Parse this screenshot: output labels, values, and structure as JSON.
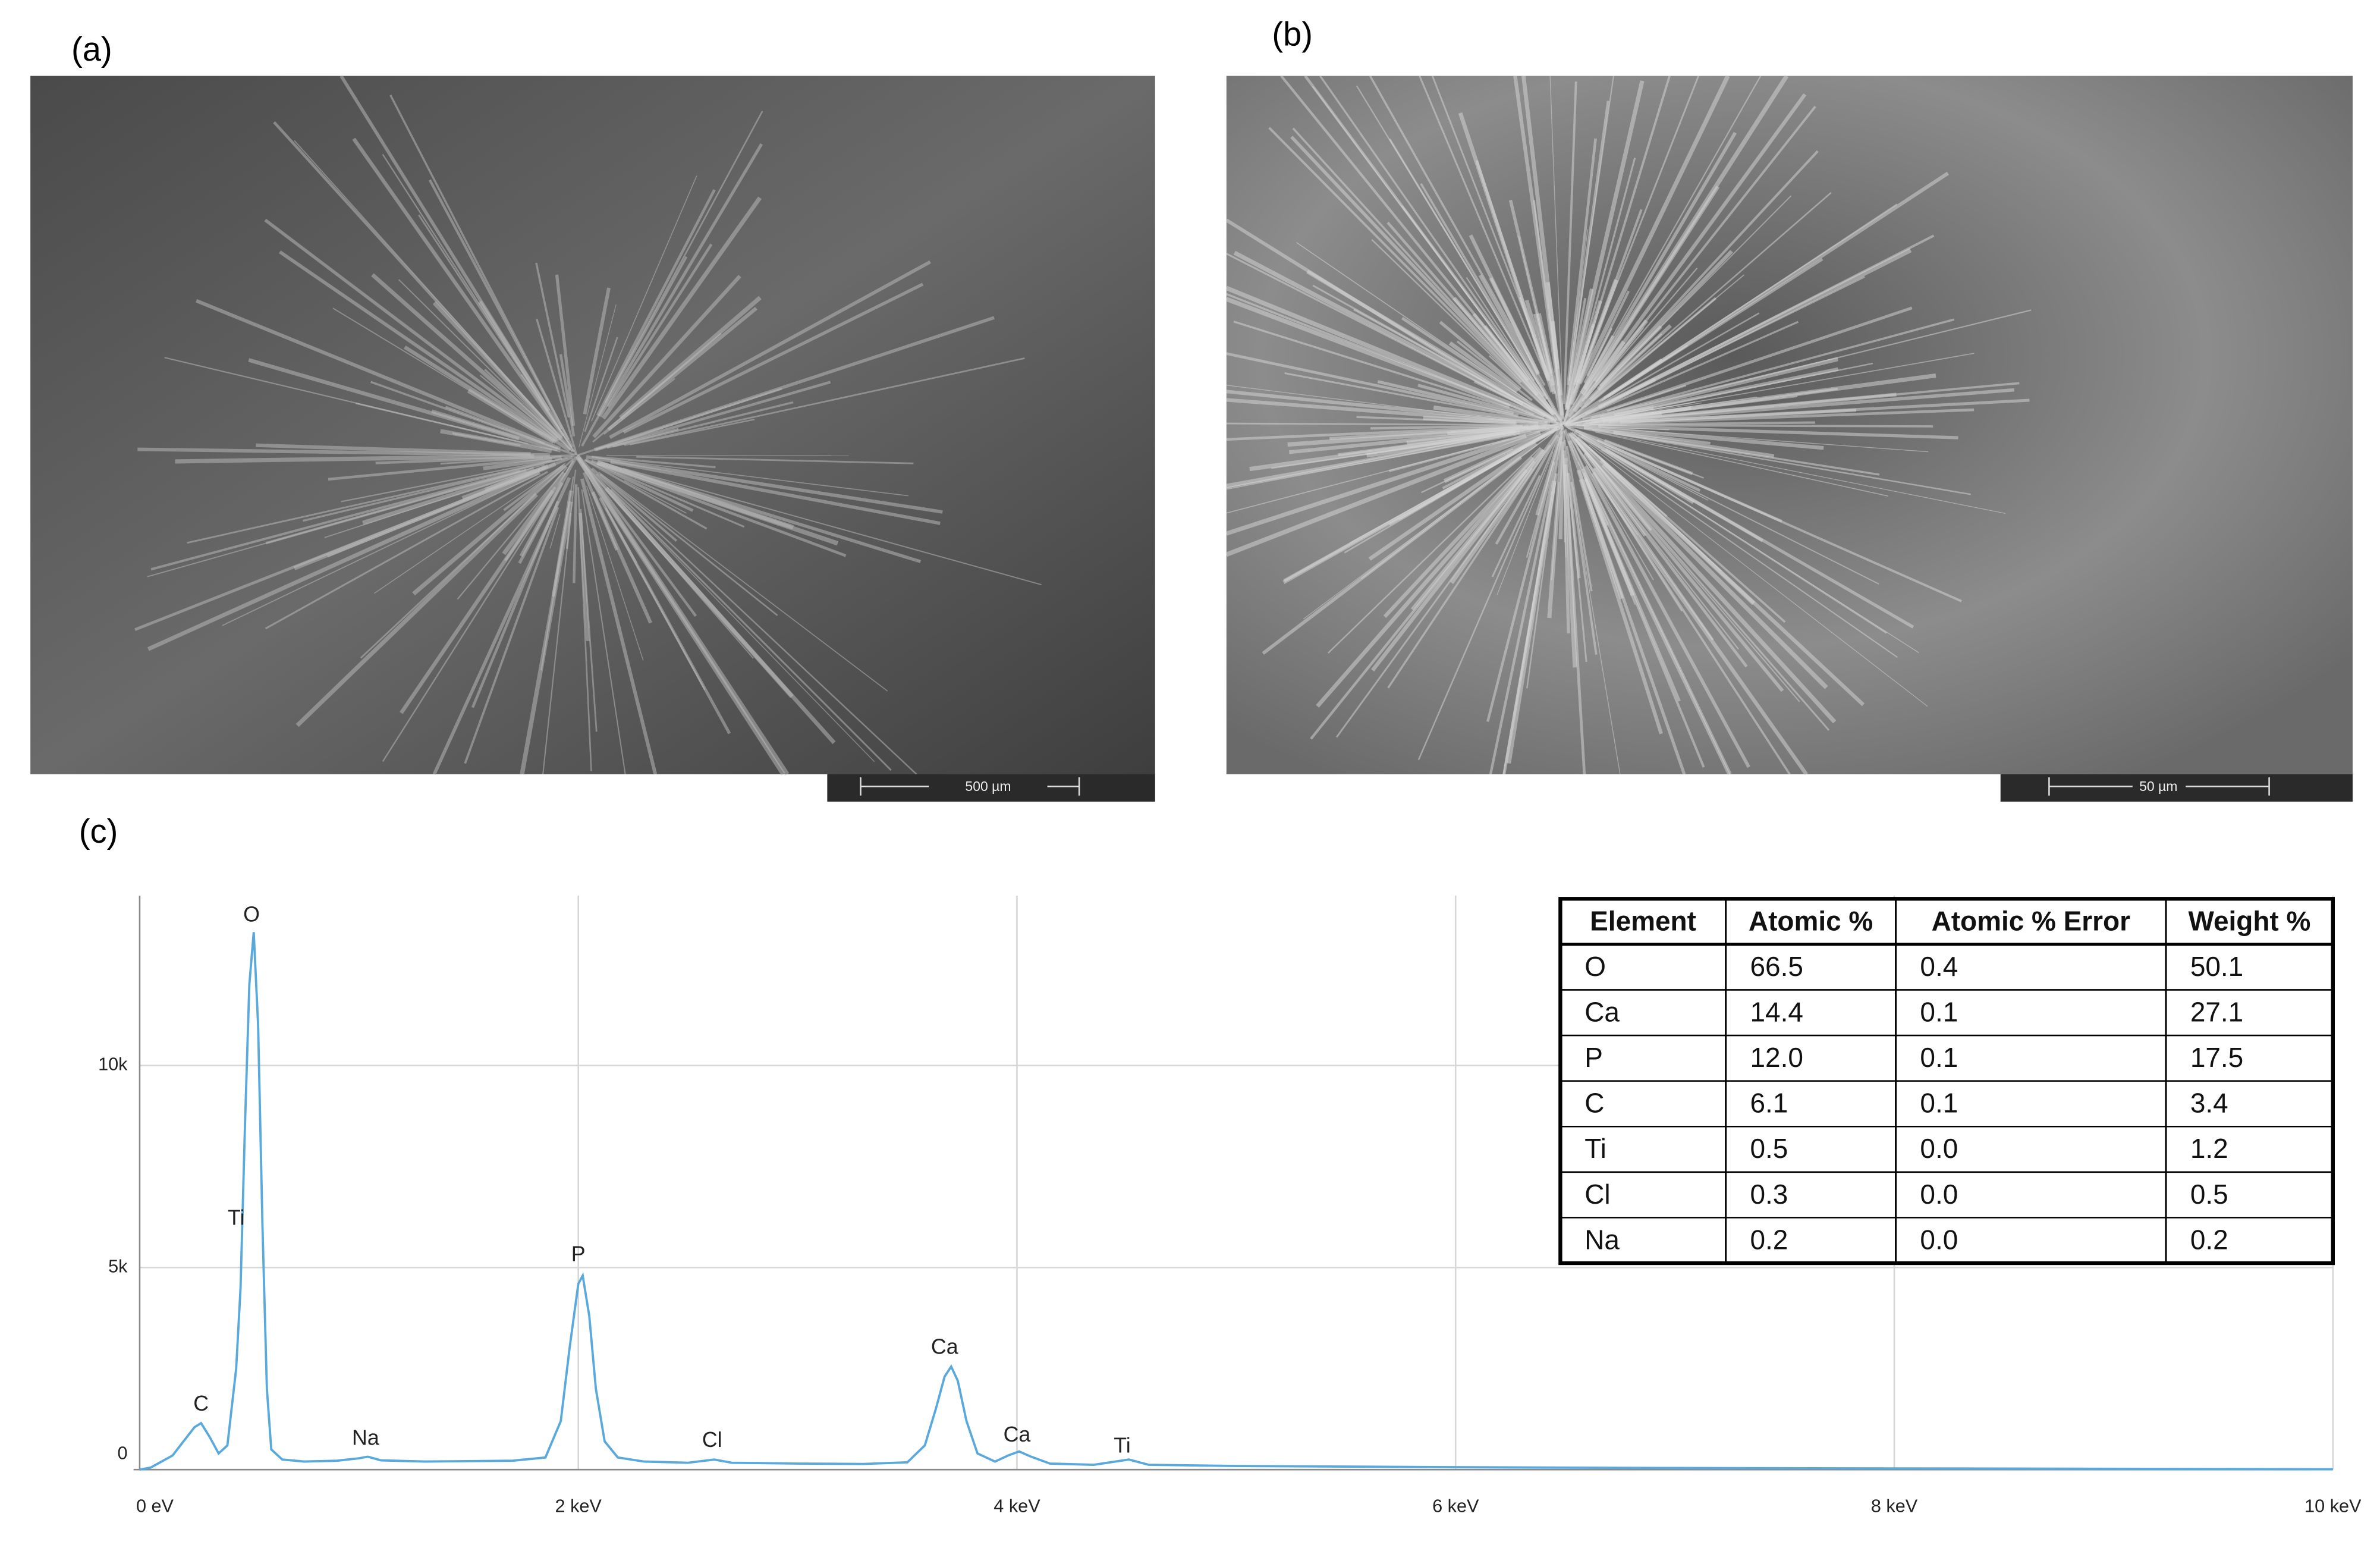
{
  "images": [
    {
      "label": "(a)",
      "scale_bar": "500 µm"
    },
    {
      "label": "(b)",
      "scale_bar": "50 µm"
    }
  ],
  "spectrum_label": "(c)",
  "chart_data": {
    "type": "line",
    "color": "#5aa9dc",
    "grid": true,
    "x": [
      0.0,
      0.05,
      0.1,
      0.15,
      0.2,
      0.25,
      0.28,
      0.32,
      0.36,
      0.4,
      0.44,
      0.46,
      0.48,
      0.5,
      0.52,
      0.54,
      0.56,
      0.58,
      0.6,
      0.65,
      0.75,
      0.9,
      1.0,
      1.04,
      1.1,
      1.3,
      1.5,
      1.7,
      1.85,
      1.92,
      1.96,
      2.0,
      2.02,
      2.05,
      2.08,
      2.12,
      2.18,
      2.3,
      2.5,
      2.62,
      2.7,
      3.0,
      3.3,
      3.5,
      3.58,
      3.63,
      3.67,
      3.7,
      3.73,
      3.77,
      3.82,
      3.9,
      3.96,
      4.01,
      4.06,
      4.15,
      4.35,
      4.51,
      4.6,
      5.0,
      6.0,
      7.0,
      8.0,
      9.0,
      10.0
    ],
    "values": [
      0,
      50,
      200,
      350,
      700,
      1050,
      1150,
      800,
      400,
      600,
      2500,
      4500,
      8500,
      12000,
      13300,
      11000,
      6000,
      2000,
      500,
      250,
      200,
      220,
      280,
      320,
      230,
      200,
      210,
      220,
      300,
      1200,
      3000,
      4600,
      4800,
      3800,
      2000,
      700,
      300,
      200,
      170,
      250,
      170,
      150,
      140,
      180,
      600,
      1500,
      2300,
      2550,
      2200,
      1200,
      400,
      200,
      350,
      450,
      330,
      150,
      120,
      250,
      120,
      90,
      60,
      40,
      30,
      20,
      10
    ],
    "xlim": [
      0,
      10
    ],
    "ylim": [
      0,
      14200
    ],
    "xticks": [
      {
        "value": 0,
        "label": "0 eV"
      },
      {
        "value": 2,
        "label": "2 keV"
      },
      {
        "value": 4,
        "label": "4 keV"
      },
      {
        "value": 6,
        "label": "6 keV"
      },
      {
        "value": 8,
        "label": "8 keV"
      },
      {
        "value": 10,
        "label": "10 keV"
      }
    ],
    "yticks": [
      0,
      {
        "value": 5000,
        "label": "5k"
      },
      {
        "value": 10000,
        "label": "10k"
      }
    ],
    "annotations": [
      {
        "text": "C",
        "x": 0.28,
        "y": 1600
      },
      {
        "text": "Ti",
        "x": 0.44,
        "y": 6200
      },
      {
        "text": "O",
        "x": 0.51,
        "y": 13700
      },
      {
        "text": "Na",
        "x": 1.03,
        "y": 750
      },
      {
        "text": "P",
        "x": 2.0,
        "y": 5300
      },
      {
        "text": "Cl",
        "x": 2.61,
        "y": 700
      },
      {
        "text": "Ca",
        "x": 3.67,
        "y": 3000
      },
      {
        "text": "Ca",
        "x": 4.0,
        "y": 830
      },
      {
        "text": "Ti",
        "x": 4.48,
        "y": 560
      }
    ]
  },
  "table": {
    "header": [
      "Element",
      "Atomic %",
      "Atomic % Error",
      "Weight %"
    ],
    "rows": [
      [
        "O",
        "66.5",
        "0.4",
        "50.1"
      ],
      [
        "Ca",
        "14.4",
        "0.1",
        "27.1"
      ],
      [
        "P",
        "12.0",
        "0.1",
        "17.5"
      ],
      [
        "C",
        "6.1",
        "0.1",
        "3.4"
      ],
      [
        "Ti",
        "0.5",
        "0.0",
        "1.2"
      ],
      [
        "Cl",
        "0.3",
        "0.0",
        "0.5"
      ],
      [
        "Na",
        "0.2",
        "0.0",
        "0.2"
      ]
    ]
  }
}
